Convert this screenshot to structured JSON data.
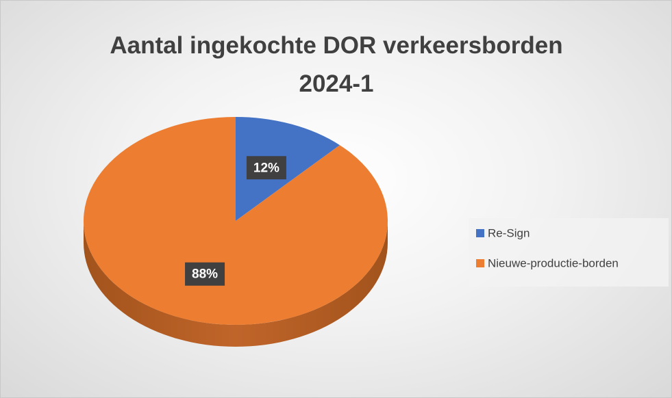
{
  "chart_data": {
    "type": "pie",
    "title": "Aantal ingekochte DOR verkeersborden 2024-1",
    "categories": [
      "Re-Sign",
      "Nieuwe-productie-borden"
    ],
    "values": [
      12,
      88
    ],
    "value_labels": [
      "12%",
      "88%"
    ],
    "colors": [
      "#4472c4",
      "#ed7d31"
    ],
    "legend": "right"
  }
}
